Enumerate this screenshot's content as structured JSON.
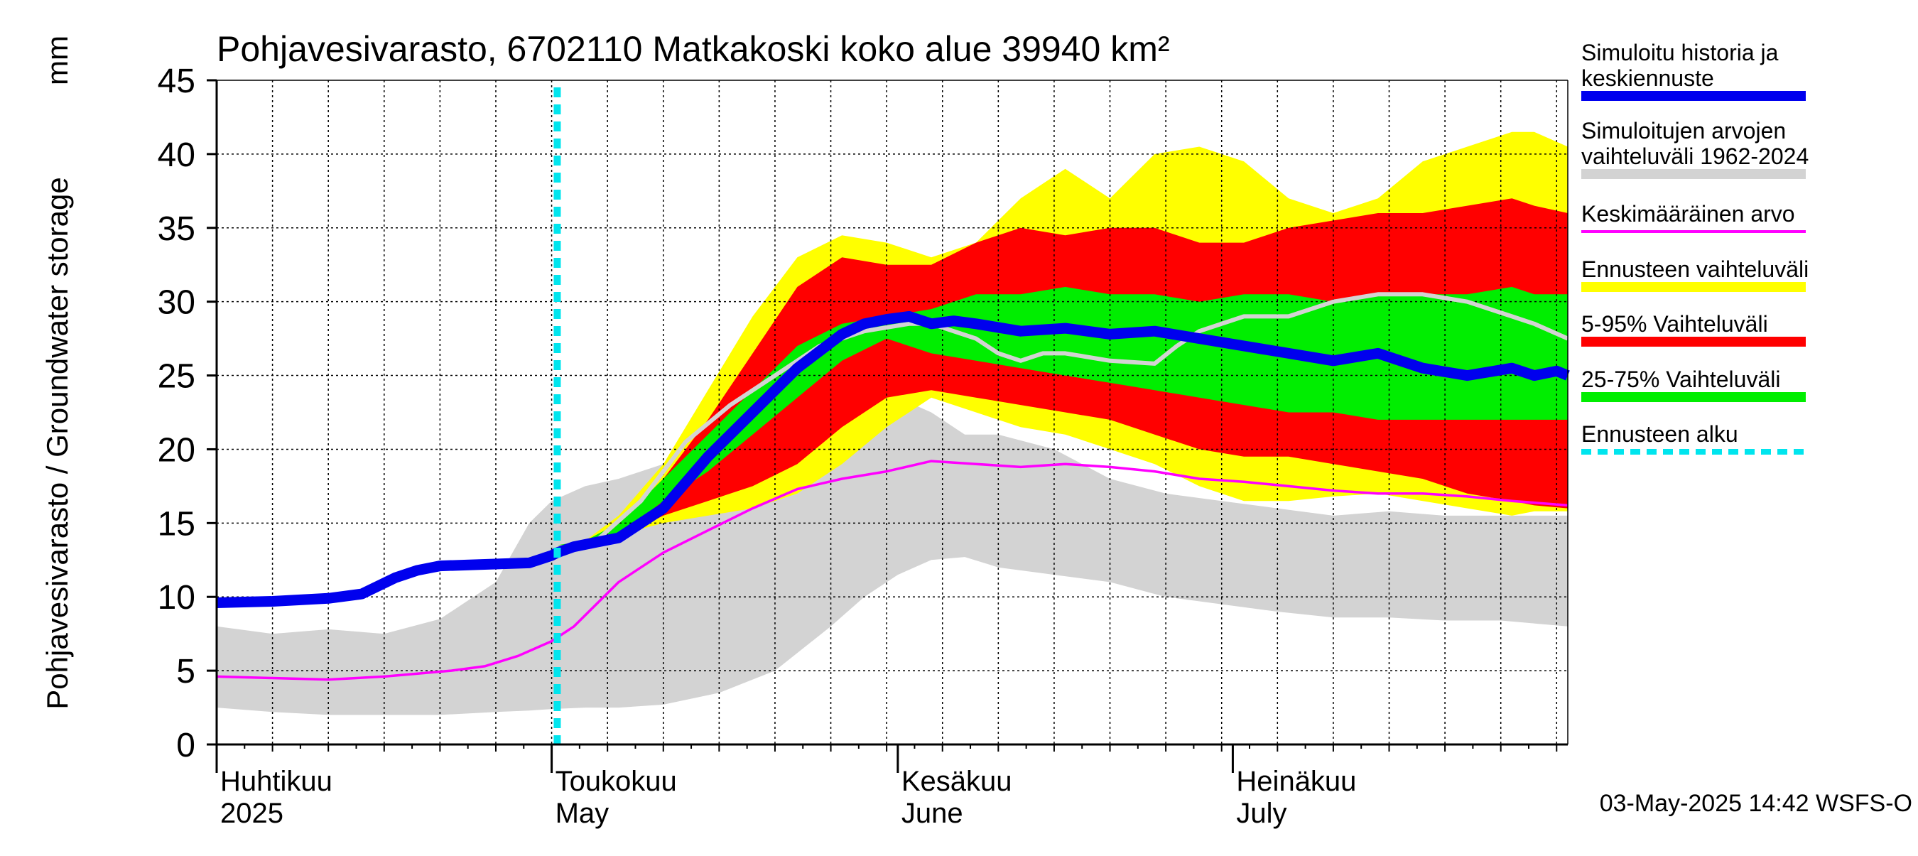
{
  "chart_data": {
    "type": "area",
    "title": "Pohjavesivarasto, 6702110 Matkakoski koko alue 39940 km²",
    "ylabel": "Pohjavesivarasto / Groundwater storage",
    "yunit": "mm",
    "ylim": [
      0,
      45
    ],
    "yticks": [
      "0",
      "5",
      "10",
      "15",
      "20",
      "25",
      "30",
      "35",
      "40",
      "45"
    ],
    "x_range_days": [
      0,
      121
    ],
    "forecast_start_day": 30.5,
    "grid": true,
    "month_labels": [
      {
        "day": 0,
        "fi": "Huhtikuu",
        "en": "2025"
      },
      {
        "day": 30,
        "fi": "Toukokuu",
        "en": "May"
      },
      {
        "day": 61,
        "fi": "Kesäkuu",
        "en": "June"
      },
      {
        "day": 91,
        "fi": "Heinäkuu",
        "en": "July"
      }
    ],
    "legend": [
      {
        "label": "Simuloitu historia ja keskiennuste",
        "lines": [
          "Simuloitu historia ja",
          "keskiennuste"
        ],
        "color": "#0000ee",
        "style": "thick"
      },
      {
        "label": "Simuloitujen arvojen vaihteluväli 1962-2024",
        "lines": [
          "Simuloitujen arvojen",
          "vaihteluväli 1962-2024"
        ],
        "color": "#d3d3d3",
        "style": "band"
      },
      {
        "label": "Keskimääräinen arvo",
        "lines": [
          "Keskimääräinen arvo"
        ],
        "color": "#ff00ff",
        "style": "thin"
      },
      {
        "label": "Ennusteen vaihteluväli",
        "lines": [
          "Ennusteen vaihteluväli"
        ],
        "color": "#ffff00",
        "style": "band"
      },
      {
        "label": "5-95% Vaihteluväli",
        "lines": [
          "5-95% Vaihteluväli"
        ],
        "color": "#ff0000",
        "style": "band"
      },
      {
        "label": "25-75% Vaihteluväli",
        "lines": [
          "25-75% Vaihteluväli"
        ],
        "color": "#00ee00",
        "style": "band"
      },
      {
        "label": "Ennusteen alku",
        "lines": [
          "Ennusteen alku"
        ],
        "color": "#00e5ee",
        "style": "dashed"
      }
    ],
    "timestamp": "03-May-2025 14:42 WSFS-O",
    "series": {
      "hist_range": {
        "x": [
          0,
          5,
          10,
          15,
          20,
          25,
          28,
          30,
          33,
          36,
          40,
          45,
          50,
          55,
          58,
          61,
          64,
          67,
          70,
          75,
          80,
          85,
          90,
          95,
          100,
          105,
          110,
          115,
          121
        ],
        "low": [
          2.5,
          2.2,
          2.0,
          2.0,
          2.0,
          2.2,
          2.3,
          2.4,
          2.5,
          2.5,
          2.7,
          3.5,
          5.0,
          8.0,
          10.0,
          11.5,
          12.5,
          12.7,
          12.0,
          11.5,
          11.0,
          10.0,
          9.5,
          9.0,
          8.6,
          8.6,
          8.4,
          8.4,
          8.0
        ],
        "high": [
          8.0,
          7.5,
          7.8,
          7.5,
          8.5,
          11.0,
          15.0,
          16.5,
          17.5,
          18.0,
          19.0,
          21.0,
          22.0,
          22.5,
          23.0,
          23.5,
          22.5,
          21.0,
          21.0,
          20.0,
          18.0,
          17.0,
          16.5,
          16.0,
          15.5,
          15.8,
          15.5,
          15.5,
          15.5
        ]
      },
      "ensemble_outer": {
        "x": [
          30.5,
          33,
          36,
          40,
          44,
          48,
          52,
          56,
          60,
          64,
          68,
          72,
          76,
          80,
          84,
          88,
          92,
          96,
          100,
          104,
          108,
          112,
          116,
          118,
          121
        ],
        "low": [
          13.5,
          13.7,
          14.2,
          15.0,
          15.5,
          16.0,
          17.0,
          19.0,
          21.5,
          23.5,
          22.5,
          21.5,
          21.0,
          20.0,
          19.0,
          17.5,
          16.5,
          16.5,
          16.8,
          17.0,
          16.5,
          16.0,
          15.5,
          15.8,
          15.8
        ],
        "high": [
          13.5,
          13.8,
          15.5,
          19.0,
          24.0,
          29.0,
          33.0,
          34.5,
          34.0,
          33.0,
          34.0,
          37.0,
          39.0,
          37.0,
          40.0,
          40.5,
          39.5,
          37.0,
          36.0,
          37.0,
          39.5,
          40.5,
          41.5,
          41.5,
          40.5
        ]
      },
      "ensemble_5_95": {
        "x": [
          30.5,
          33,
          36,
          40,
          44,
          48,
          52,
          56,
          60,
          64,
          68,
          72,
          76,
          80,
          84,
          88,
          92,
          96,
          100,
          104,
          108,
          112,
          116,
          118,
          121
        ],
        "low": [
          13.5,
          13.6,
          14.0,
          15.5,
          16.5,
          17.5,
          19.0,
          21.5,
          23.5,
          24.0,
          23.5,
          23.0,
          22.5,
          22.0,
          21.0,
          20.0,
          19.5,
          19.5,
          19.0,
          18.5,
          18.0,
          17.0,
          16.5,
          16.2,
          16.0
        ],
        "high": [
          13.5,
          13.7,
          15.0,
          18.0,
          22.0,
          26.5,
          31.0,
          33.0,
          32.5,
          32.5,
          34.0,
          35.0,
          34.5,
          35.0,
          35.0,
          34.0,
          34.0,
          35.0,
          35.5,
          36.0,
          36.0,
          36.5,
          37.0,
          36.5,
          36.0
        ]
      },
      "ensemble_25_75": {
        "x": [
          30.5,
          33,
          36,
          40,
          44,
          48,
          52,
          56,
          60,
          64,
          68,
          72,
          76,
          80,
          84,
          88,
          92,
          96,
          100,
          104,
          108,
          112,
          116,
          118,
          121
        ],
        "low": [
          13.5,
          13.6,
          14.2,
          16.5,
          18.5,
          21.0,
          23.5,
          26.0,
          27.5,
          26.5,
          26.0,
          25.5,
          25.0,
          24.5,
          24.0,
          23.5,
          23.0,
          22.5,
          22.5,
          22.0,
          22.0,
          22.0,
          22.0,
          22.0,
          22.0
        ],
        "high": [
          13.5,
          13.8,
          15.0,
          18.0,
          21.0,
          24.0,
          27.0,
          28.5,
          29.0,
          29.5,
          30.5,
          30.5,
          31.0,
          30.5,
          30.5,
          30.0,
          30.5,
          30.5,
          30.0,
          30.5,
          30.5,
          30.5,
          31.0,
          30.5,
          30.5
        ]
      },
      "sim_mean": {
        "x": [
          0,
          5,
          10,
          13,
          16,
          18,
          20,
          24,
          28,
          30,
          30.5,
          32,
          34,
          36,
          40,
          44,
          48,
          52,
          56,
          58,
          60,
          62,
          64,
          66,
          68,
          72,
          76,
          80,
          84,
          88,
          92,
          96,
          100,
          104,
          108,
          112,
          116,
          118,
          120,
          121
        ],
        "values": [
          9.6,
          9.7,
          9.9,
          10.2,
          11.3,
          11.8,
          12.1,
          12.2,
          12.3,
          12.8,
          13.0,
          13.4,
          13.7,
          14.0,
          16.0,
          19.5,
          22.5,
          25.5,
          27.8,
          28.5,
          28.8,
          29.0,
          28.5,
          28.7,
          28.5,
          28.0,
          28.2,
          27.8,
          28.0,
          27.5,
          27.0,
          26.5,
          26.0,
          26.5,
          25.5,
          25.0,
          25.5,
          25.0,
          25.3,
          25.0
        ]
      },
      "gray_trace": {
        "x": [
          30.5,
          34,
          38,
          42,
          46,
          50,
          54,
          58,
          62,
          64,
          68,
          70,
          72,
          74,
          76,
          80,
          84,
          86,
          88,
          92,
          96,
          100,
          104,
          108,
          112,
          116,
          118,
          121
        ],
        "values": [
          13.0,
          13.8,
          16.5,
          20.5,
          23.0,
          25.0,
          27.0,
          28.0,
          28.5,
          28.5,
          27.5,
          26.5,
          26.0,
          26.5,
          26.5,
          26.0,
          25.8,
          27.0,
          28.0,
          29.0,
          29.0,
          30.0,
          30.5,
          30.5,
          30.0,
          29.0,
          28.5,
          27.5
        ]
      },
      "mean_value": {
        "x": [
          0,
          5,
          10,
          15,
          18,
          21,
          24,
          27,
          30,
          31,
          32,
          34,
          36,
          40,
          44,
          48,
          52,
          56,
          60,
          64,
          68,
          72,
          76,
          80,
          84,
          88,
          92,
          96,
          100,
          104,
          108,
          112,
          116,
          121
        ],
        "values": [
          4.6,
          4.5,
          4.4,
          4.6,
          4.8,
          5.0,
          5.3,
          6.0,
          7.0,
          7.5,
          8.0,
          9.5,
          11.0,
          13.0,
          14.5,
          16.0,
          17.3,
          18.0,
          18.5,
          19.2,
          19.0,
          18.8,
          19.0,
          18.8,
          18.5,
          18.0,
          17.8,
          17.5,
          17.2,
          17.0,
          17.0,
          16.8,
          16.5,
          16.2
        ]
      }
    }
  }
}
